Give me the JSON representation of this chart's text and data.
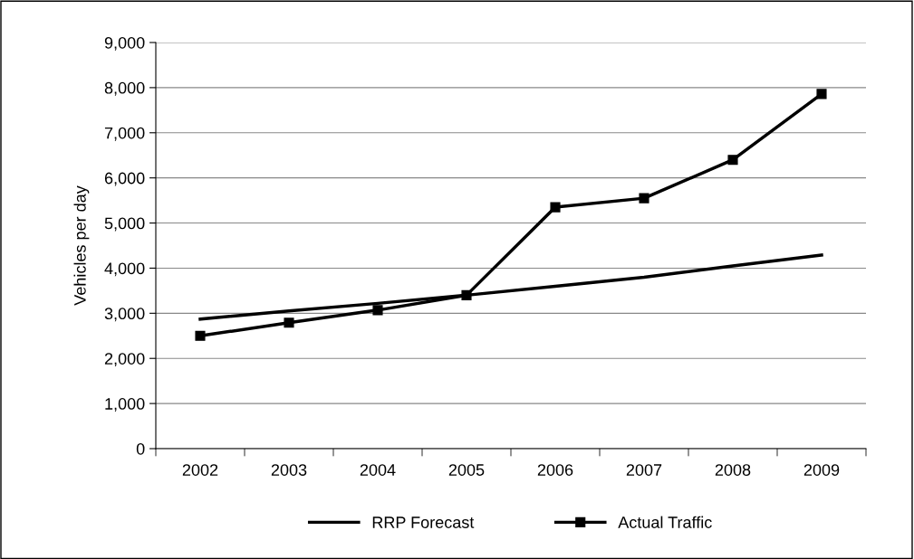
{
  "chart_data": {
    "type": "line",
    "ylabel": "Vehicles per day",
    "categories": [
      "2002",
      "2003",
      "2004",
      "2005",
      "2006",
      "2007",
      "2008",
      "2009"
    ],
    "series": [
      {
        "name": "RRP Forecast",
        "color": "#000000",
        "marker": "none",
        "values": [
          2870,
          3050,
          3220,
          3400,
          3600,
          3800,
          4050,
          4290
        ]
      },
      {
        "name": "Actual Traffic",
        "color": "#000000",
        "marker": "square",
        "values": [
          2500,
          2790,
          3070,
          3400,
          5350,
          5550,
          6400,
          7860
        ]
      }
    ],
    "ylim": [
      0,
      9000
    ],
    "yticks": [
      {
        "value": 0,
        "label": "0"
      },
      {
        "value": 1000,
        "label": "1,000"
      },
      {
        "value": 2000,
        "label": "2,000"
      },
      {
        "value": 3000,
        "label": "3,000"
      },
      {
        "value": 4000,
        "label": "4,000"
      },
      {
        "value": 5000,
        "label": "5,000"
      },
      {
        "value": 6000,
        "label": "6,000"
      },
      {
        "value": 7000,
        "label": "7,000"
      },
      {
        "value": 8000,
        "label": "8,000"
      },
      {
        "value": 9000,
        "label": "9,000"
      }
    ],
    "grid": "y",
    "legend": "bottom"
  }
}
